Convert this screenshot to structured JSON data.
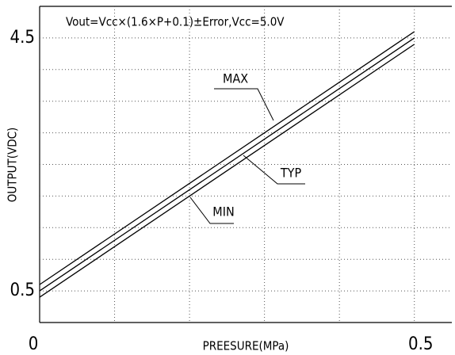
{
  "chart_data": {
    "type": "line",
    "title": "Vout=Vcc×(1.6×P+0.1)±Error,Vcc=5.0V",
    "x_label": "PREESURE(MPa)",
    "y_label": "OUTPUT(VDC)",
    "x": [
      0,
      0.5
    ],
    "series": [
      {
        "name": "MAX",
        "color": "#000000",
        "values": [
          0.6,
          4.6
        ]
      },
      {
        "name": "TYP",
        "color": "#000000",
        "values": [
          0.5,
          4.5
        ]
      },
      {
        "name": "MIN",
        "color": "#000000",
        "values": [
          0.4,
          4.4
        ]
      }
    ],
    "xlim": [
      0,
      0.55
    ],
    "ylim": [
      0,
      5
    ],
    "xticks": [
      0,
      0.5
    ],
    "yticks": [
      0.5,
      4.5
    ],
    "xgrid": [
      0.1,
      0.2,
      0.3,
      0.4,
      0.5
    ],
    "ygrid": [
      0.5,
      1,
      1.5,
      2,
      2.5,
      3,
      3.5,
      4,
      4.5
    ],
    "grid": true
  }
}
